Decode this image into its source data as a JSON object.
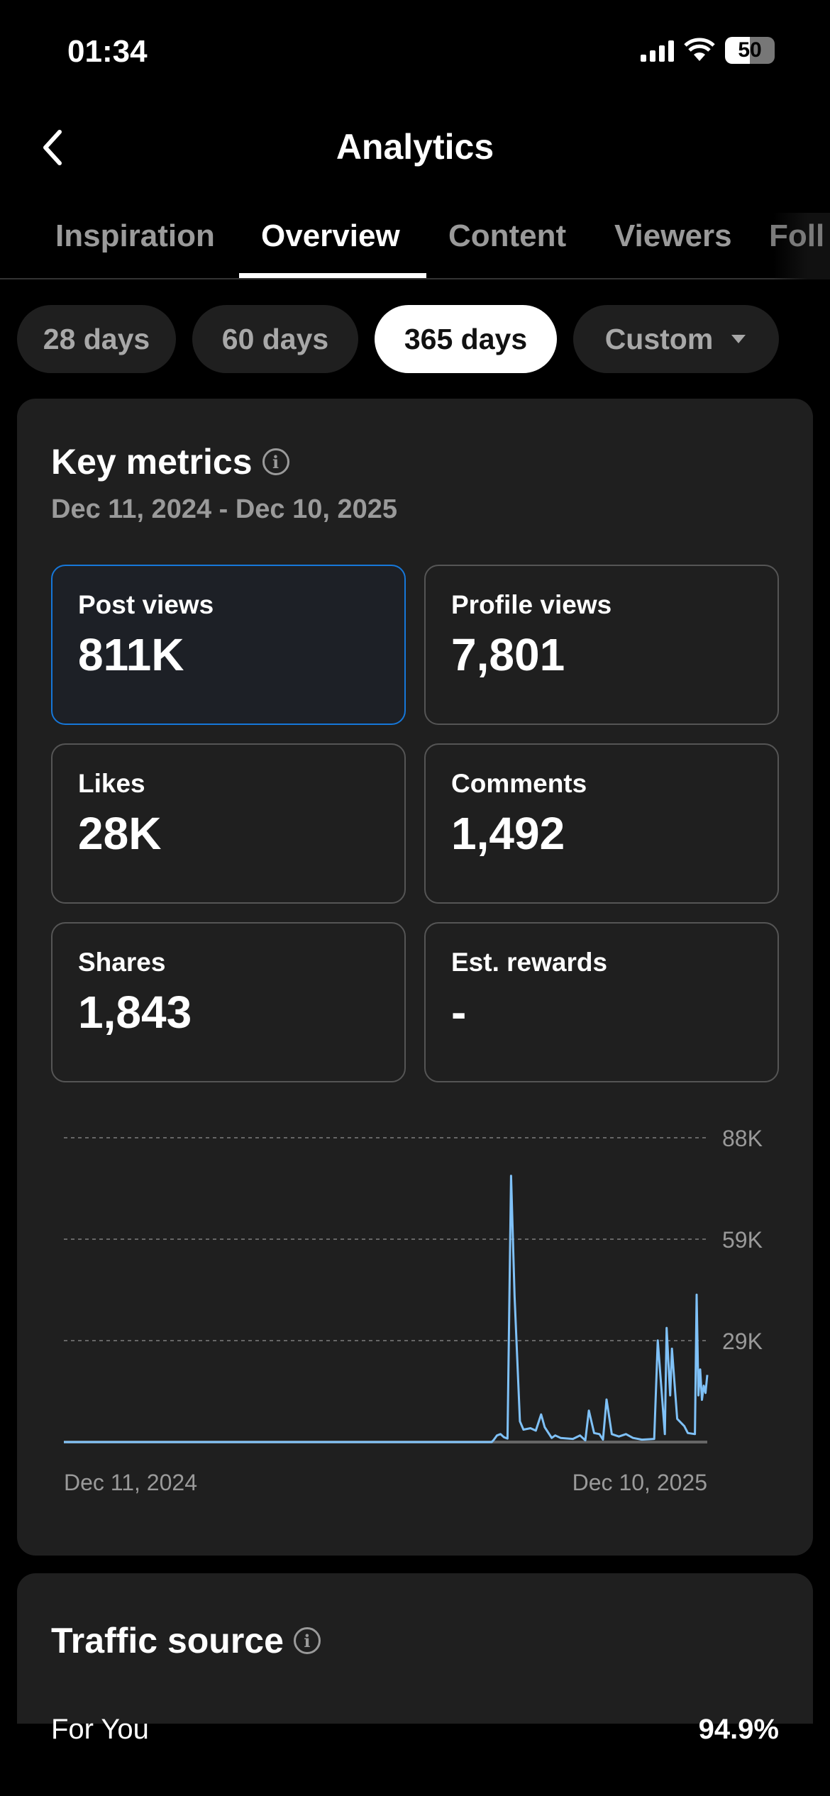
{
  "status_bar": {
    "time": "01:34",
    "battery": "50",
    "icons": [
      "signal-icon",
      "wifi-icon",
      "battery-icon"
    ]
  },
  "header": {
    "title": "Analytics",
    "back_icon": "chevron-left-icon"
  },
  "tabs": [
    {
      "label": "Inspiration"
    },
    {
      "label": "Overview",
      "active": true
    },
    {
      "label": "Content"
    },
    {
      "label": "Viewers"
    },
    {
      "label": "Foll"
    }
  ],
  "ranges": [
    {
      "label": "28 days"
    },
    {
      "label": "60 days"
    },
    {
      "label": "365 days",
      "active": true
    },
    {
      "label": "Custom",
      "dropdown": true
    }
  ],
  "key_metrics": {
    "title": "Key metrics",
    "date_range": "Dec 11, 2024 - Dec 10, 2025",
    "metrics": [
      {
        "label": "Post views",
        "value": "811K",
        "selected": true
      },
      {
        "label": "Profile views",
        "value": "7,801"
      },
      {
        "label": "Likes",
        "value": "28K"
      },
      {
        "label": "Comments",
        "value": "1,492"
      },
      {
        "label": "Shares",
        "value": "1,843"
      },
      {
        "label": "Est. rewards",
        "value": "-"
      }
    ]
  },
  "chart_data": {
    "type": "line",
    "series": [
      {
        "color": "#7fc1f7",
        "points": [
          [
            "2024-12-11",
            0
          ],
          [
            "2025-08-10",
            0
          ],
          [
            "2025-08-11",
            500
          ],
          [
            "2025-08-13",
            1900
          ],
          [
            "2025-08-15",
            2300
          ],
          [
            "2025-08-17",
            1400
          ],
          [
            "2025-08-19",
            1000
          ],
          [
            "2025-08-21",
            77000
          ],
          [
            "2025-08-23",
            42000
          ],
          [
            "2025-08-26",
            6000
          ],
          [
            "2025-08-28",
            3600
          ],
          [
            "2025-09-01",
            4000
          ],
          [
            "2025-09-04",
            3300
          ],
          [
            "2025-09-07",
            8000
          ],
          [
            "2025-09-09",
            4300
          ],
          [
            "2025-09-13",
            1200
          ],
          [
            "2025-09-15",
            1900
          ],
          [
            "2025-09-18",
            1200
          ],
          [
            "2025-09-25",
            900
          ],
          [
            "2025-09-29",
            1900
          ],
          [
            "2025-10-02",
            500
          ],
          [
            "2025-10-04",
            9100
          ],
          [
            "2025-10-07",
            2600
          ],
          [
            "2025-10-10",
            2300
          ],
          [
            "2025-10-12",
            700
          ],
          [
            "2025-10-14",
            12300
          ],
          [
            "2025-10-17",
            2300
          ],
          [
            "2025-10-21",
            1600
          ],
          [
            "2025-10-25",
            2300
          ],
          [
            "2025-10-29",
            1200
          ],
          [
            "2025-11-03",
            700
          ],
          [
            "2025-11-10",
            900
          ],
          [
            "2025-11-12",
            29400
          ],
          [
            "2025-11-16",
            2300
          ],
          [
            "2025-11-17",
            33000
          ],
          [
            "2025-11-19",
            13500
          ],
          [
            "2025-11-20",
            27000
          ],
          [
            "2025-11-23",
            6700
          ],
          [
            "2025-11-27",
            4600
          ],
          [
            "2025-11-29",
            2600
          ],
          [
            "2025-12-03",
            2300
          ],
          [
            "2025-12-04",
            42600
          ],
          [
            "2025-12-05",
            13500
          ],
          [
            "2025-12-06",
            21000
          ],
          [
            "2025-12-07",
            12200
          ],
          [
            "2025-12-08",
            16300
          ],
          [
            "2025-12-09",
            14200
          ],
          [
            "2025-12-10",
            19400
          ]
        ]
      }
    ],
    "x_range": [
      "2024-12-11",
      "2025-12-10"
    ],
    "x_tick_labels": [
      "Dec 11, 2024",
      "Dec 10, 2025"
    ],
    "y_range": [
      0,
      88000
    ],
    "y_ticks": [
      29333,
      58667,
      88000
    ],
    "y_tick_labels": [
      "29K",
      "59K",
      "88K"
    ],
    "grid": "horizontal dashed",
    "y_axis": "right"
  },
  "traffic_source": {
    "title": "Traffic source",
    "rows": [
      {
        "label": "For You",
        "value": "94.9%"
      }
    ]
  },
  "colors": {
    "accent": "#1677d9",
    "line": "#7fc1f7",
    "card": "#1f1f1f",
    "background": "#000000"
  }
}
